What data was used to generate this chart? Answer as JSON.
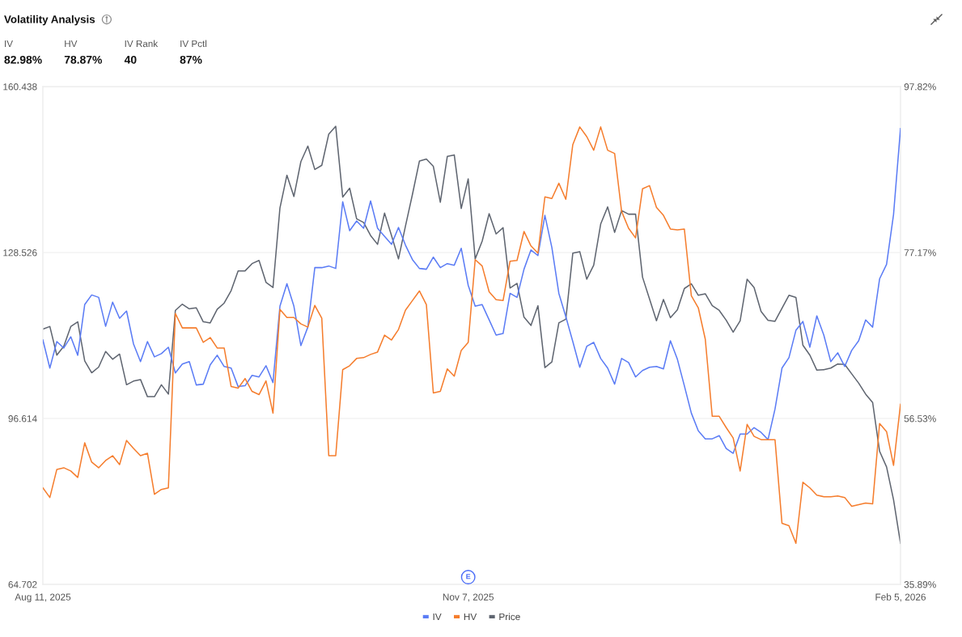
{
  "chart_data": {
    "type": "line",
    "title": "Volatility Analysis",
    "annotations": [
      "IV",
      "82.98%",
      "HV",
      "78.87%",
      "IV Rank",
      "40",
      "IV Pctl",
      "87%",
      {
        "text": "E",
        "x": "Nov 7, 2025",
        "y": 66.1
      }
    ],
    "categories": [
      "Aug 11, 2025",
      null,
      null,
      null,
      null,
      null,
      null,
      null,
      null,
      null,
      null,
      null,
      null,
      null,
      null,
      null,
      null,
      null,
      null,
      null,
      null,
      null,
      null,
      null,
      null,
      null,
      null,
      null,
      null,
      null,
      null,
      null,
      null,
      null,
      null,
      null,
      null,
      null,
      null,
      null,
      null,
      null,
      null,
      null,
      null,
      null,
      null,
      null,
      null,
      null,
      null,
      null,
      null,
      null,
      null,
      null,
      null,
      null,
      null,
      null,
      null,
      "Nov 7, 2025",
      null,
      null,
      null,
      null,
      null,
      null,
      null,
      null,
      null,
      null,
      null,
      null,
      null,
      null,
      null,
      null,
      null,
      null,
      null,
      null,
      null,
      null,
      null,
      null,
      null,
      null,
      null,
      null,
      null,
      null,
      null,
      null,
      null,
      null,
      null,
      null,
      null,
      null,
      null,
      null,
      null,
      null,
      null,
      null,
      null,
      null,
      null,
      null,
      null,
      null,
      null,
      null,
      null,
      null,
      null,
      null,
      null,
      null,
      null,
      null,
      null,
      "Feb 5, 2026"
    ],
    "series": [
      {
        "name": "IV",
        "color": "#5b7cf5",
        "axis": "y2",
        "values": [
          66.3,
          62.8,
          66.1,
          65.3,
          66.7,
          64.4,
          70.7,
          71.9,
          71.6,
          68.0,
          71.0,
          69.0,
          69.9,
          65.8,
          63.6,
          66.1,
          64.2,
          64.6,
          65.4,
          62.2,
          63.3,
          63.6,
          60.7,
          60.8,
          63.2,
          64.4,
          63.0,
          62.8,
          60.5,
          60.6,
          61.9,
          61.7,
          63.1,
          61.0,
          70.5,
          73.3,
          70.5,
          65.6,
          67.9,
          75.3,
          75.3,
          75.5,
          75.2,
          83.5,
          79.9,
          81.1,
          80.2,
          83.6,
          80.2,
          79.2,
          78.2,
          80.3,
          78.1,
          76.3,
          75.2,
          75.1,
          76.6,
          75.3,
          75.8,
          75.6,
          77.7,
          73.1,
          70.5,
          70.7,
          68.8,
          66.9,
          67.1,
          72.1,
          71.6,
          75.1,
          77.5,
          76.8,
          81.8,
          77.8,
          72.1,
          69.2,
          66.1,
          62.9,
          65.5,
          66.0,
          64.0,
          62.8,
          60.8,
          64.0,
          63.5,
          61.7,
          62.5,
          62.9,
          63.0,
          62.7,
          66.2,
          63.9,
          60.6,
          57.2,
          55.0,
          54.0,
          54.0,
          54.4,
          52.8,
          52.2,
          54.6,
          54.6,
          55.4,
          54.8,
          53.9,
          57.7,
          62.8,
          64.1,
          67.5,
          68.6,
          65.4,
          69.3,
          66.9,
          63.6,
          64.7,
          63.0,
          65.0,
          66.2,
          68.8,
          67.9,
          73.9,
          75.7,
          81.9,
          92.6
        ]
      },
      {
        "name": "HV",
        "color": "#f57d2d",
        "axis": "y2",
        "values": [
          47.9,
          46.7,
          50.2,
          50.4,
          50.0,
          49.2,
          53.5,
          51.1,
          50.4,
          51.3,
          51.9,
          50.8,
          53.8,
          52.8,
          51.9,
          52.2,
          47.1,
          47.7,
          47.9,
          69.6,
          67.8,
          67.8,
          67.8,
          66.0,
          66.6,
          65.3,
          65.3,
          60.5,
          60.3,
          61.5,
          59.9,
          59.5,
          61.2,
          57.2,
          70.1,
          69.1,
          69.1,
          68.3,
          67.9,
          70.6,
          69.0,
          51.9,
          51.9,
          62.6,
          63.1,
          64.0,
          64.1,
          64.5,
          64.8,
          66.9,
          66.3,
          67.6,
          70.0,
          71.2,
          72.4,
          70.7,
          59.7,
          59.9,
          62.7,
          61.8,
          65.0,
          66.0,
          76.3,
          75.5,
          72.3,
          71.3,
          71.2,
          76.1,
          76.2,
          79.8,
          78.0,
          77.1,
          84.1,
          83.9,
          85.8,
          83.8,
          90.6,
          92.8,
          91.6,
          89.9,
          92.8,
          89.9,
          89.5,
          82.3,
          80.2,
          79.0,
          85.1,
          85.5,
          82.8,
          81.8,
          80.1,
          80.0,
          80.1,
          71.8,
          70.3,
          66.4,
          56.8,
          56.8,
          55.4,
          54.1,
          50.0,
          55.8,
          54.3,
          53.9,
          53.9,
          53.9,
          43.5,
          43.2,
          41.0,
          48.6,
          47.9,
          47.0,
          46.8,
          46.8,
          46.9,
          46.7,
          45.6,
          45.8,
          46.0,
          45.9,
          55.9,
          54.9,
          50.7,
          58.3
        ]
      },
      {
        "name": "Price",
        "color": "#5f6570",
        "values": [
          113.8,
          114.3,
          108.8,
          110.5,
          114.3,
          115.2,
          107.7,
          105.4,
          106.5,
          109.5,
          108.0,
          109.0,
          103.1,
          103.8,
          104.1,
          100.8,
          100.8,
          103.1,
          101.3,
          117.4,
          118.6,
          117.7,
          117.9,
          115.2,
          115.0,
          117.6,
          118.8,
          121.2,
          125.0,
          125.0,
          126.4,
          127.0,
          122.8,
          121.8,
          137.1,
          143.4,
          139.3,
          146.0,
          149.0,
          144.5,
          145.3,
          151.3,
          152.8,
          139.2,
          140.9,
          135.0,
          134.3,
          131.8,
          130.1,
          136.1,
          131.8,
          127.3,
          133.6,
          139.7,
          146.1,
          146.5,
          145.1,
          138.2,
          147.0,
          147.3,
          137.0,
          142.7,
          127.3,
          130.7,
          136.0,
          132.1,
          133.3,
          121.7,
          122.6,
          116.1,
          114.5,
          118.3,
          106.4,
          107.5,
          115.0,
          115.7,
          128.4,
          128.7,
          123.4,
          126.1,
          134.0,
          137.3,
          132.4,
          136.6,
          135.9,
          135.9,
          123.8,
          119.6,
          115.4,
          119.5,
          116.0,
          117.5,
          121.6,
          122.5,
          120.3,
          120.6,
          118.3,
          117.4,
          115.5,
          113.2,
          115.4,
          123.4,
          121.8,
          117.2,
          115.5,
          115.3,
          117.8,
          120.3,
          119.9,
          110.7,
          108.8,
          105.9,
          106.0,
          106.3,
          107.1,
          107.0,
          105.2,
          103.4,
          101.3,
          99.7,
          90.3,
          87.3,
          81.0,
          72.6
        ]
      }
    ],
    "ylim": [
      64.702,
      160.438
    ],
    "yticks": [
      64.702,
      96.614,
      128.526,
      160.438
    ],
    "y2lim": [
      35.89,
      97.82
    ],
    "y2ticks": [
      {
        "value": 35.89,
        "label": "35.89%"
      },
      {
        "value": 56.53,
        "label": "56.53%"
      },
      {
        "value": 77.17,
        "label": "77.17%"
      },
      {
        "value": 97.82,
        "label": "97.82%"
      }
    ],
    "grid": "y",
    "legend": "bottom"
  }
}
